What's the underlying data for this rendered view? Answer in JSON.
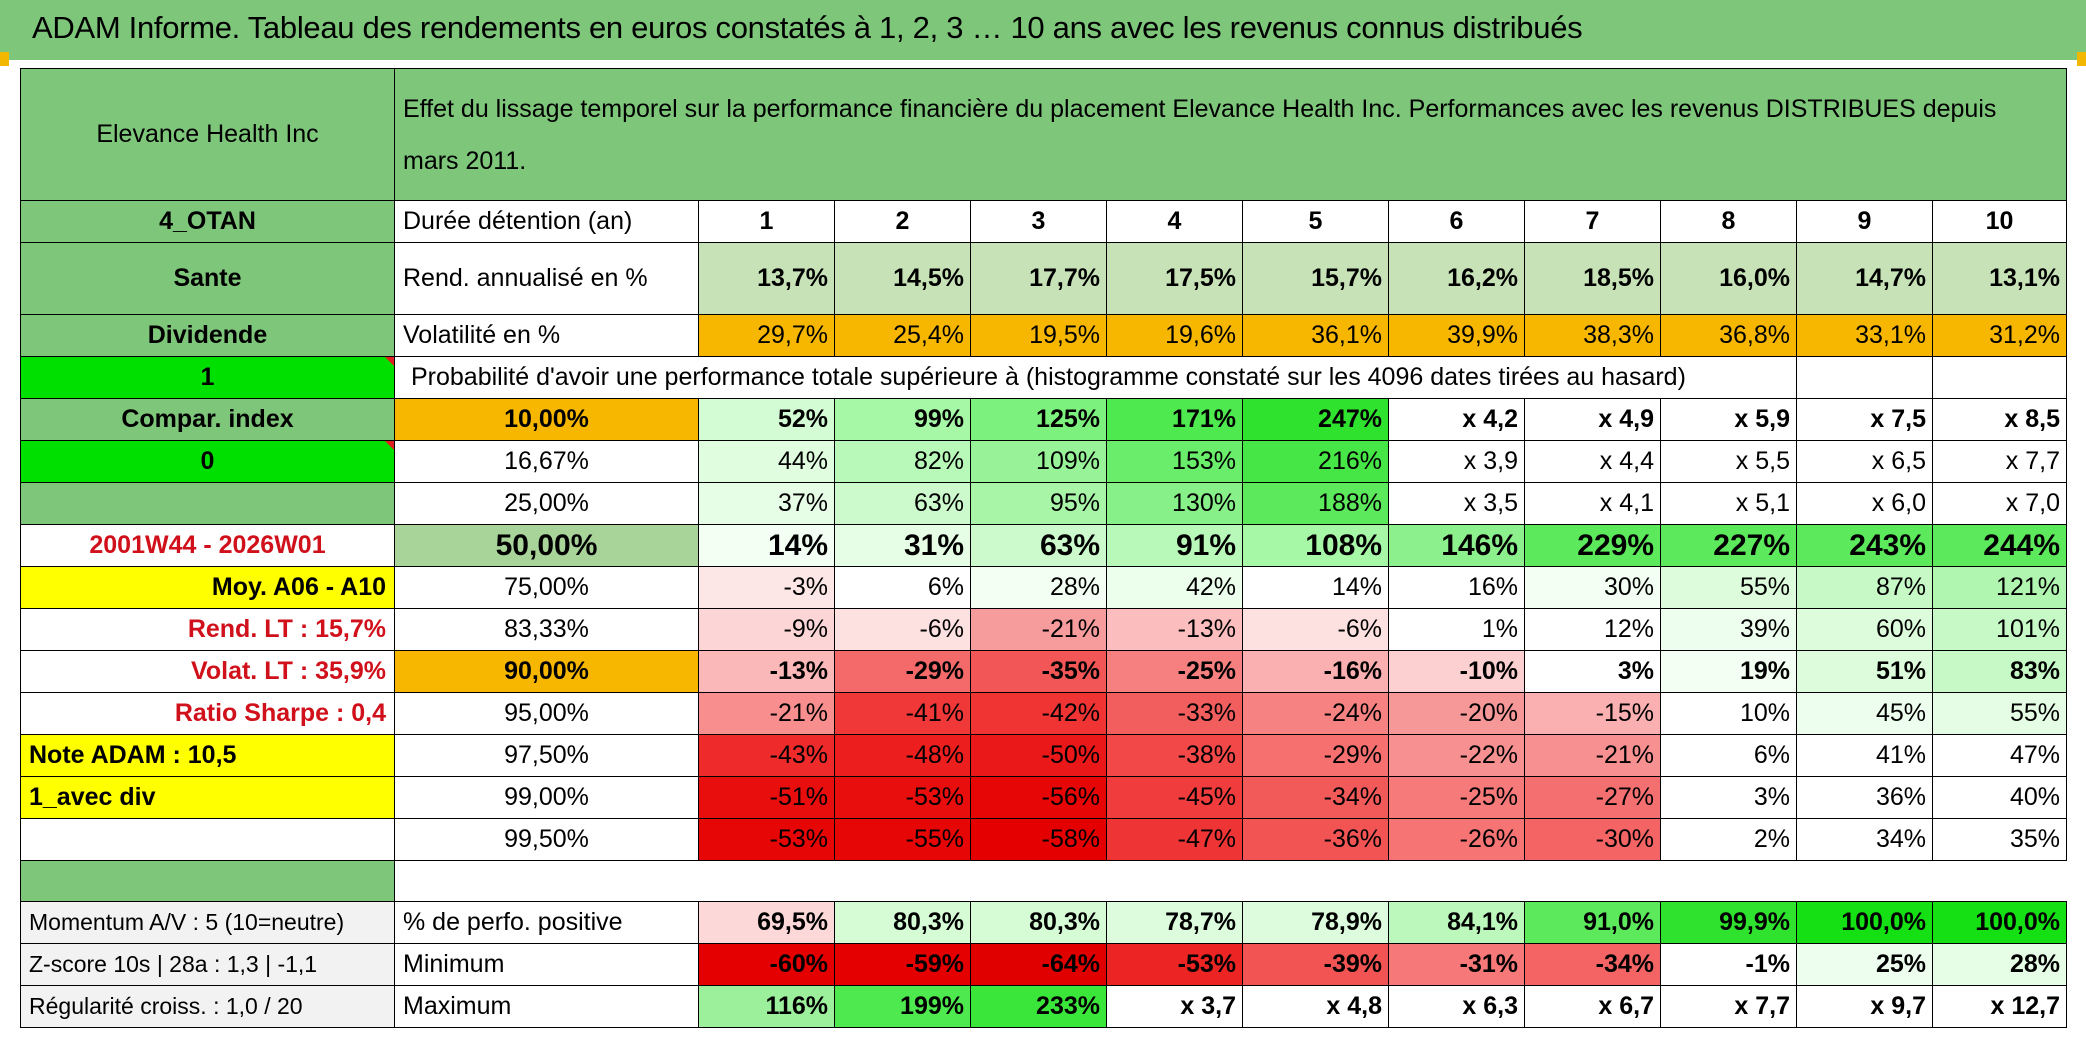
{
  "title": "ADAM Informe. Tableau des rendements en euros constatés à 1, 2, 3 … 10 ans avec les revenus connus distribués",
  "header": {
    "company": "Elevance Health Inc",
    "description": "Effet du lissage temporel sur la performance financière du placement Elevance Health Inc. Performances avec les revenus DISTRIBUES depuis mars 2011."
  },
  "left_panel": {
    "otan": "4_OTAN",
    "sector": "Sante",
    "dividend": "Dividende",
    "flag_1": "1",
    "compar_index": "Compar. index",
    "flag_0": "0",
    "period": "2001W44 - 2026W01",
    "moy": "Moy. A06 - A10",
    "rend_lt": "Rend. LT :    15,7%",
    "volat_lt": "Volat. LT :   35,9%",
    "sharpe": "Ratio Sharpe :    0,4",
    "note": "Note ADAM : 10,5",
    "avec_div": "1_avec div",
    "momentum": "Momentum A/V : 5 (10=neutre)",
    "zscore": "Z-score 10s | 28a : 1,3 | -1,1",
    "regularite": "Régularité croiss. : 1,0 / 20"
  },
  "duration_label": "Durée détention (an)",
  "years": [
    "1",
    "2",
    "3",
    "4",
    "5",
    "6",
    "7",
    "8",
    "9",
    "10"
  ],
  "rend_label": "Rend. annualisé en %",
  "rend": [
    "13,7%",
    "14,5%",
    "17,7%",
    "17,5%",
    "15,7%",
    "16,2%",
    "18,5%",
    "16,0%",
    "14,7%",
    "13,1%"
  ],
  "vol_label": "Volatilité en %",
  "vol": [
    "29,7%",
    "25,4%",
    "19,5%",
    "19,6%",
    "36,1%",
    "39,9%",
    "38,3%",
    "36,8%",
    "33,1%",
    "31,2%"
  ],
  "prob_label": "Probabilité d'avoir une performance totale supérieure à (histogramme constaté sur les 4096 dates tirées au hasard)",
  "prob_rows": [
    {
      "p": "10,00%",
      "v": [
        "52%",
        "99%",
        "125%",
        "171%",
        "247%",
        "x 4,2",
        "x 4,9",
        "x 5,9",
        "x 7,5",
        "x 8,5"
      ]
    },
    {
      "p": "16,67%",
      "v": [
        "44%",
        "82%",
        "109%",
        "153%",
        "216%",
        "x 3,9",
        "x 4,4",
        "x 5,5",
        "x 6,5",
        "x 7,7"
      ]
    },
    {
      "p": "25,00%",
      "v": [
        "37%",
        "63%",
        "95%",
        "130%",
        "188%",
        "x 3,5",
        "x 4,1",
        "x 5,1",
        "x 6,0",
        "x 7,0"
      ]
    },
    {
      "p": "50,00%",
      "v": [
        "14%",
        "31%",
        "63%",
        "91%",
        "108%",
        "146%",
        "229%",
        "227%",
        "243%",
        "244%"
      ]
    },
    {
      "p": "75,00%",
      "v": [
        "-3%",
        "6%",
        "28%",
        "42%",
        "14%",
        "16%",
        "30%",
        "55%",
        "87%",
        "121%"
      ]
    },
    {
      "p": "83,33%",
      "v": [
        "-9%",
        "-6%",
        "-21%",
        "-13%",
        "-6%",
        "1%",
        "12%",
        "39%",
        "60%",
        "101%"
      ]
    },
    {
      "p": "90,00%",
      "v": [
        "-13%",
        "-29%",
        "-35%",
        "-25%",
        "-16%",
        "-10%",
        "3%",
        "19%",
        "51%",
        "83%"
      ]
    },
    {
      "p": "95,00%",
      "v": [
        "-21%",
        "-41%",
        "-42%",
        "-33%",
        "-24%",
        "-20%",
        "-15%",
        "10%",
        "45%",
        "55%"
      ]
    },
    {
      "p": "97,50%",
      "v": [
        "-43%",
        "-48%",
        "-50%",
        "-38%",
        "-29%",
        "-22%",
        "-21%",
        "6%",
        "41%",
        "47%"
      ]
    },
    {
      "p": "99,00%",
      "v": [
        "-51%",
        "-53%",
        "-56%",
        "-45%",
        "-34%",
        "-25%",
        "-27%",
        "3%",
        "36%",
        "40%"
      ]
    },
    {
      "p": "99,50%",
      "v": [
        "-53%",
        "-55%",
        "-58%",
        "-47%",
        "-36%",
        "-26%",
        "-30%",
        "2%",
        "34%",
        "35%"
      ]
    }
  ],
  "pos_label": "% de perfo. positive",
  "pos": [
    "69,5%",
    "80,3%",
    "80,3%",
    "78,7%",
    "78,9%",
    "84,1%",
    "91,0%",
    "99,9%",
    "100,0%",
    "100,0%"
  ],
  "min_label": "Minimum",
  "min": [
    "-60%",
    "-59%",
    "-64%",
    "-53%",
    "-39%",
    "-31%",
    "-34%",
    "-1%",
    "25%",
    "28%"
  ],
  "max_label": "Maximum",
  "max": [
    "116%",
    "199%",
    "233%",
    "x 3,7",
    "x 4,8",
    "x 6,3",
    "x 6,7",
    "x 7,7",
    "x 9,7",
    "x 12,7"
  ],
  "colors": {
    "header_green": "#7dc67a",
    "bright_green": "#00e000",
    "orange": "#f7b700",
    "yellow": "#ffff00",
    "red": "#ff0000",
    "label_red": "#d0101a"
  }
}
